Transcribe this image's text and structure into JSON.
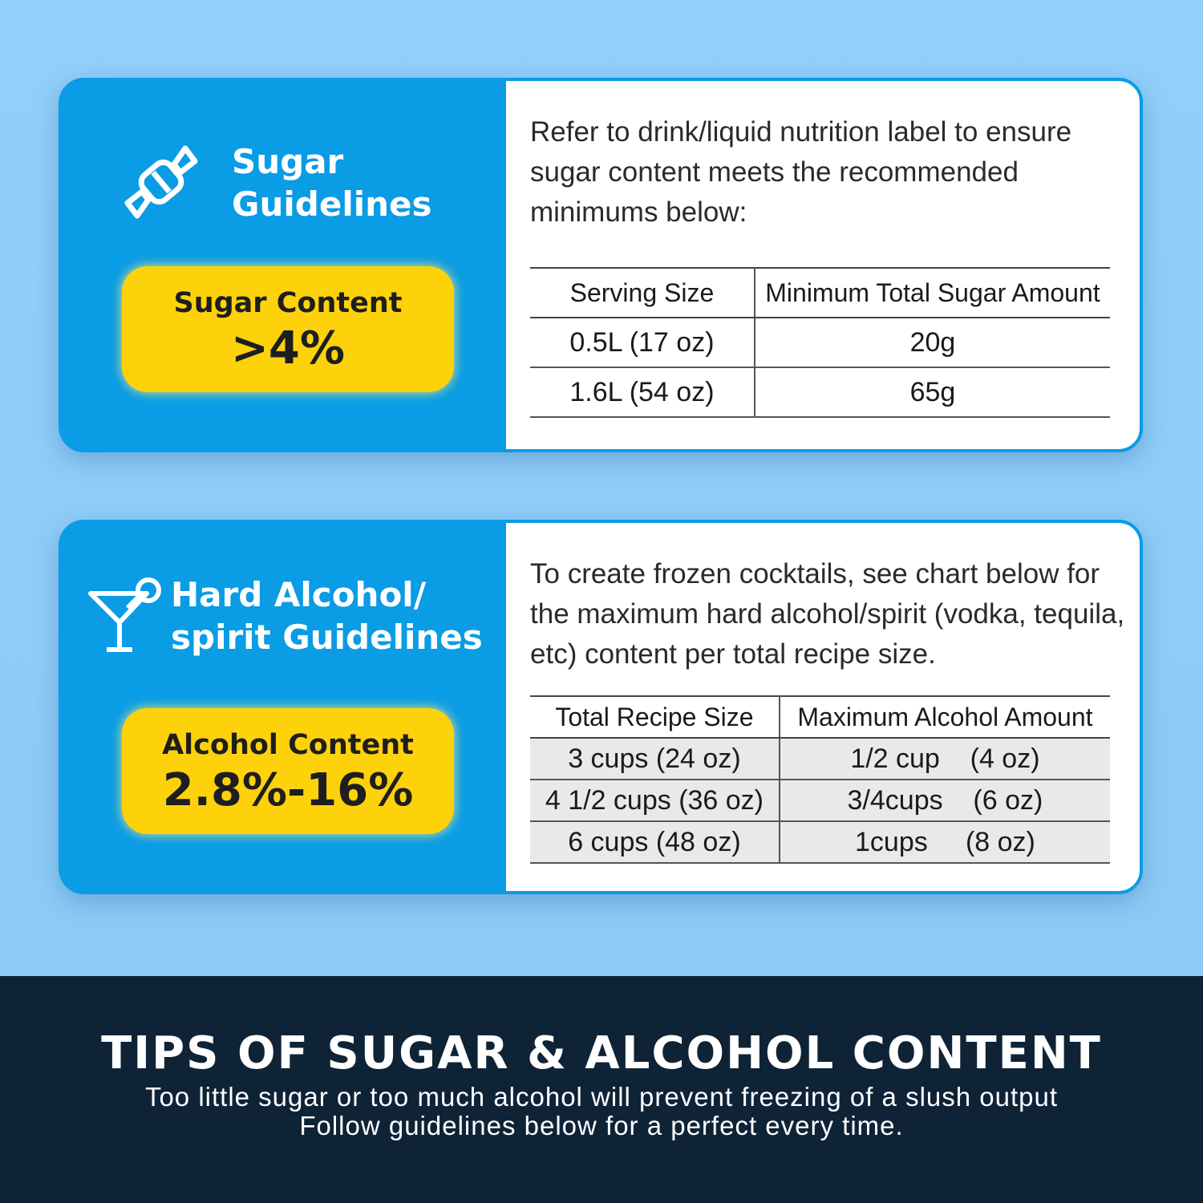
{
  "cards": [
    {
      "title": [
        "Sugar",
        "Guidelines"
      ],
      "badge": {
        "label": "Sugar Content",
        "value": ">4%"
      },
      "description": "Refer to drink/liquid nutrition label to ensure sugar content meets the recommended minimums below:",
      "table": {
        "header": [
          "Serving Size",
          "Minimum Total Sugar Amount"
        ],
        "rows": [
          [
            "0.5L (17 oz)",
            "20g"
          ],
          [
            "1.6L (54 oz)",
            "65g"
          ]
        ]
      }
    },
    {
      "title": [
        "Hard Alcohol/",
        "spirit Guidelines"
      ],
      "badge": {
        "label": "Alcohol Content",
        "value": "2.8%-16%"
      },
      "description": "To create frozen cocktails, see chart below for the maximum hard alcohol/spirit (vodka, tequila, etc) content per total recipe size.",
      "table": {
        "header": [
          "Total Recipe Size",
          "Maximum Alcohol Amount"
        ],
        "rows": [
          [
            "3 cups (24 oz)",
            "1/2 cup    (4 oz)"
          ],
          [
            "4 1/2 cups (36 oz)",
            "3/4cups    (6 oz)"
          ],
          [
            "6 cups (48 oz)",
            "1cups     (8 oz)"
          ]
        ]
      }
    }
  ],
  "footer": {
    "title": "TIPS OF SUGAR & ALCOHOL CONTENT",
    "subtitle": "Too little sugar or too much alcohol will prevent freezing of a slush output Follow guidelines below for a perfect every time."
  }
}
